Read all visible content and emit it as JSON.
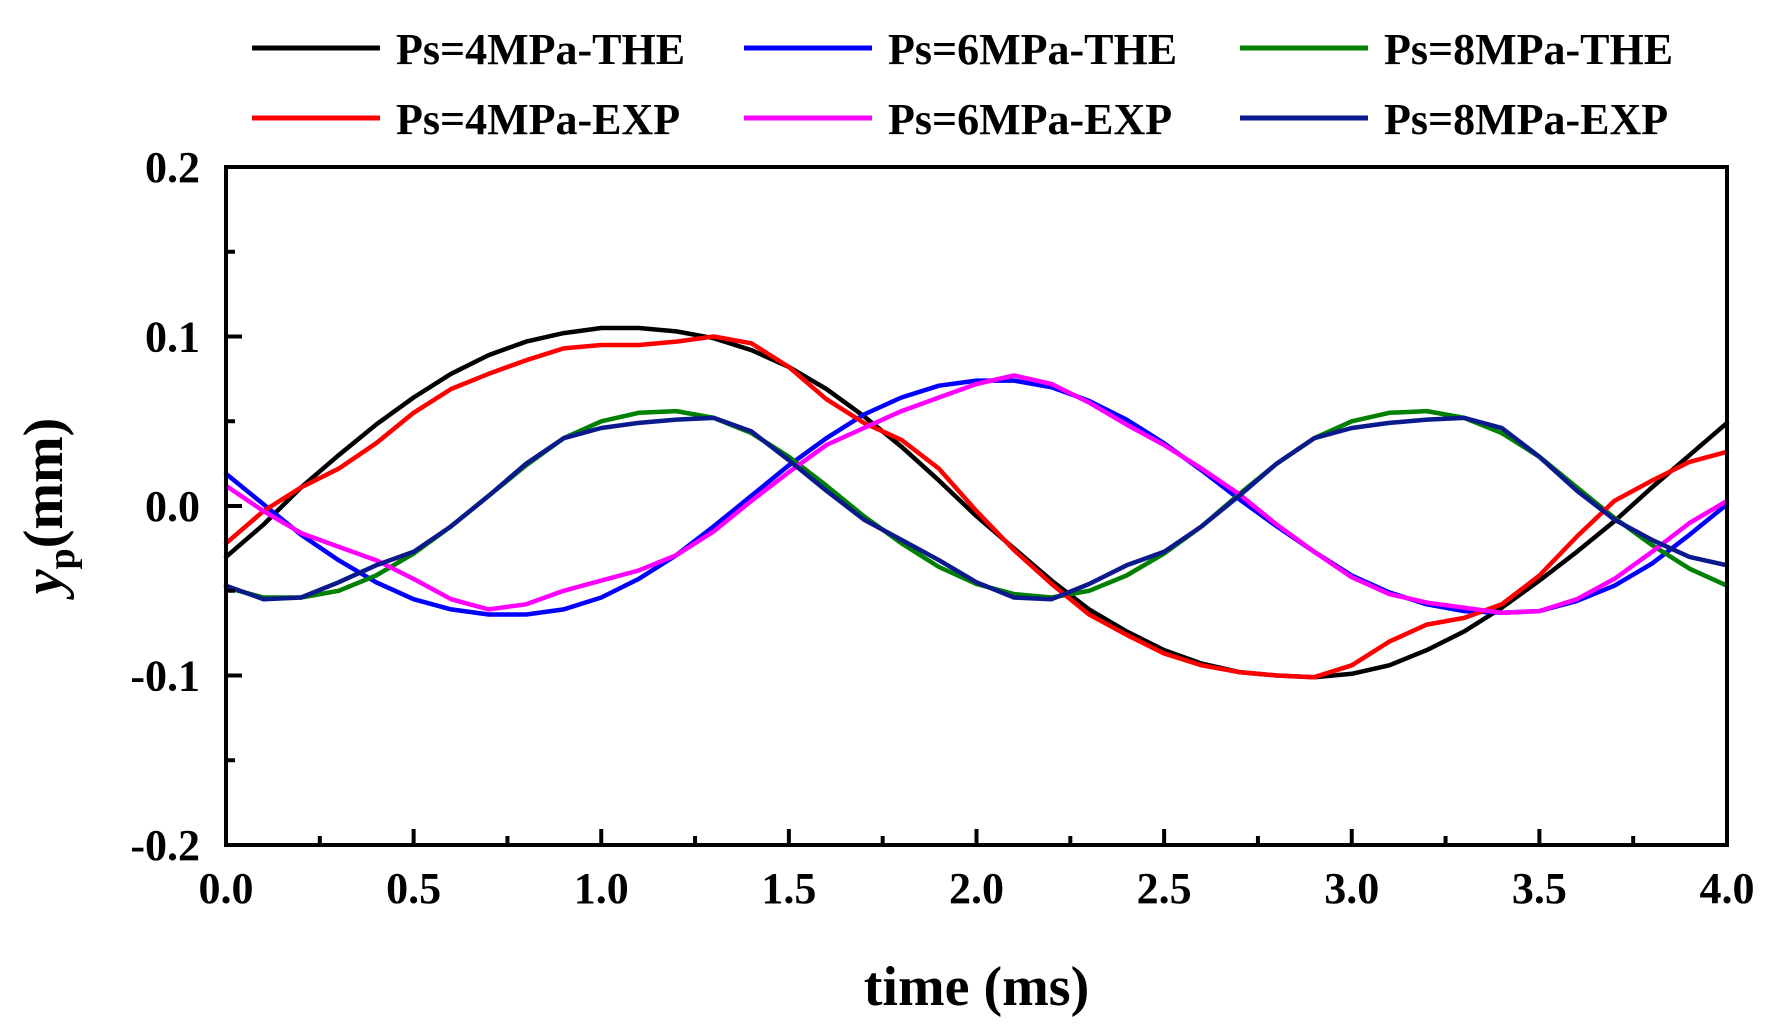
{
  "chart_data": {
    "type": "line",
    "title": "",
    "xlabel": "time (ms)",
    "ylabel": {
      "main": "y",
      "subscript": "p",
      "unit": "(mm)"
    },
    "xlim": [
      0.0,
      4.0
    ],
    "ylim": [
      -0.2,
      0.2
    ],
    "x_ticks": [
      0.0,
      0.5,
      1.0,
      1.5,
      2.0,
      2.5,
      3.0,
      3.5,
      4.0
    ],
    "x_tick_labels": [
      "0.0",
      "0.5",
      "1.0",
      "1.5",
      "2.0",
      "2.5",
      "3.0",
      "3.5",
      "4.0"
    ],
    "y_ticks": [
      -0.2,
      -0.1,
      0.0,
      0.1,
      0.2
    ],
    "y_tick_labels": [
      "-0.2",
      "-0.1",
      "0.0",
      "0.1",
      "0.2"
    ],
    "x_minor_ticks": [
      0.25,
      0.75,
      1.25,
      1.75,
      2.25,
      2.75,
      3.25,
      3.75
    ],
    "y_minor_ticks": [
      -0.15,
      -0.05,
      0.05,
      0.15
    ],
    "grid": false,
    "legend_position": "top, outside plot, 3 columns x 2 rows",
    "series": [
      {
        "name": "Ps=4MPa-THE",
        "color": "#000000",
        "x": [
          0.0,
          0.1,
          0.2,
          0.3,
          0.4,
          0.5,
          0.6,
          0.7,
          0.8,
          0.9,
          1.0,
          1.1,
          1.2,
          1.3,
          1.4,
          1.5,
          1.6,
          1.7,
          1.8,
          1.9,
          2.0,
          2.1,
          2.2,
          2.3,
          2.4,
          2.5,
          2.6,
          2.7,
          2.8,
          2.9,
          3.0,
          3.1,
          3.2,
          3.3,
          3.4,
          3.5,
          3.6,
          3.7,
          3.8,
          3.9,
          4.0
        ],
        "y": [
          -0.03,
          -0.011,
          0.011,
          0.03,
          0.048,
          0.064,
          0.078,
          0.089,
          0.097,
          0.102,
          0.105,
          0.105,
          0.103,
          0.099,
          0.092,
          0.082,
          0.069,
          0.053,
          0.035,
          0.015,
          -0.006,
          -0.025,
          -0.044,
          -0.061,
          -0.074,
          -0.085,
          -0.093,
          -0.098,
          -0.1,
          -0.101,
          -0.099,
          -0.094,
          -0.085,
          -0.074,
          -0.06,
          -0.044,
          -0.027,
          -0.009,
          0.011,
          0.03,
          0.049
        ]
      },
      {
        "name": "Ps=6MPa-THE",
        "color": "#0000ff",
        "x": [
          0.0,
          0.1,
          0.2,
          0.3,
          0.4,
          0.5,
          0.6,
          0.7,
          0.8,
          0.9,
          1.0,
          1.1,
          1.2,
          1.3,
          1.4,
          1.5,
          1.6,
          1.7,
          1.8,
          1.9,
          2.0,
          2.1,
          2.2,
          2.3,
          2.4,
          2.5,
          2.6,
          2.7,
          2.8,
          2.9,
          3.0,
          3.1,
          3.2,
          3.3,
          3.4,
          3.5,
          3.6,
          3.7,
          3.8,
          3.9,
          4.0
        ],
        "y": [
          0.019,
          0.001,
          -0.017,
          -0.032,
          -0.045,
          -0.055,
          -0.061,
          -0.064,
          -0.064,
          -0.061,
          -0.054,
          -0.043,
          -0.029,
          -0.012,
          0.006,
          0.024,
          0.04,
          0.054,
          0.064,
          0.071,
          0.074,
          0.074,
          0.07,
          0.062,
          0.051,
          0.037,
          0.021,
          0.004,
          -0.012,
          -0.027,
          -0.041,
          -0.051,
          -0.058,
          -0.062,
          -0.063,
          -0.062,
          -0.056,
          -0.047,
          -0.034,
          -0.017,
          0.001
        ]
      },
      {
        "name": "Ps=8MPa-THE",
        "color": "#008000",
        "x": [
          0.0,
          0.1,
          0.2,
          0.3,
          0.4,
          0.5,
          0.6,
          0.7,
          0.8,
          0.9,
          1.0,
          1.1,
          1.2,
          1.3,
          1.4,
          1.5,
          1.6,
          1.7,
          1.8,
          1.9,
          2.0,
          2.1,
          2.2,
          2.3,
          2.4,
          2.5,
          2.6,
          2.7,
          2.8,
          2.9,
          3.0,
          3.1,
          3.2,
          3.3,
          3.4,
          3.5,
          3.6,
          3.7,
          3.8,
          3.9,
          4.0
        ],
        "y": [
          -0.048,
          -0.054,
          -0.054,
          -0.05,
          -0.041,
          -0.028,
          -0.012,
          0.006,
          0.024,
          0.04,
          0.05,
          0.055,
          0.056,
          0.052,
          0.043,
          0.029,
          0.012,
          -0.006,
          -0.022,
          -0.036,
          -0.046,
          -0.052,
          -0.054,
          -0.05,
          -0.041,
          -0.028,
          -0.012,
          0.007,
          0.025,
          0.04,
          0.05,
          0.055,
          0.056,
          0.052,
          0.043,
          0.029,
          0.011,
          -0.007,
          -0.023,
          -0.037,
          -0.047
        ]
      },
      {
        "name": "Ps=4MPa-EXP",
        "color": "#ff0000",
        "x": [
          0.0,
          0.1,
          0.2,
          0.3,
          0.4,
          0.5,
          0.6,
          0.7,
          0.8,
          0.9,
          1.0,
          1.1,
          1.2,
          1.3,
          1.4,
          1.5,
          1.6,
          1.7,
          1.8,
          1.9,
          2.0,
          2.1,
          2.2,
          2.3,
          2.4,
          2.5,
          2.6,
          2.7,
          2.8,
          2.9,
          3.0,
          3.1,
          3.2,
          3.3,
          3.4,
          3.5,
          3.6,
          3.7,
          3.8,
          3.9,
          4.0
        ],
        "y": [
          -0.022,
          -0.003,
          0.011,
          0.022,
          0.037,
          0.055,
          0.069,
          0.078,
          0.086,
          0.093,
          0.095,
          0.095,
          0.097,
          0.1,
          0.096,
          0.082,
          0.063,
          0.049,
          0.039,
          0.022,
          -0.003,
          -0.026,
          -0.046,
          -0.064,
          -0.076,
          -0.087,
          -0.094,
          -0.098,
          -0.1,
          -0.101,
          -0.094,
          -0.08,
          -0.07,
          -0.066,
          -0.058,
          -0.041,
          -0.018,
          0.003,
          0.015,
          0.026,
          0.032
        ]
      },
      {
        "name": "Ps=6MPa-EXP",
        "color": "#ff00ff",
        "x": [
          0.0,
          0.1,
          0.2,
          0.3,
          0.4,
          0.5,
          0.6,
          0.7,
          0.8,
          0.9,
          1.0,
          1.1,
          1.2,
          1.3,
          1.4,
          1.5,
          1.6,
          1.7,
          1.8,
          1.9,
          2.0,
          2.1,
          2.2,
          2.3,
          2.4,
          2.5,
          2.6,
          2.7,
          2.8,
          2.9,
          3.0,
          3.1,
          3.2,
          3.3,
          3.4,
          3.5,
          3.6,
          3.7,
          3.8,
          3.9,
          4.0
        ],
        "y": [
          0.012,
          -0.003,
          -0.016,
          -0.024,
          -0.032,
          -0.043,
          -0.055,
          -0.061,
          -0.058,
          -0.05,
          -0.044,
          -0.038,
          -0.029,
          -0.015,
          0.003,
          0.02,
          0.036,
          0.046,
          0.056,
          0.064,
          0.072,
          0.077,
          0.072,
          0.061,
          0.048,
          0.036,
          0.022,
          0.007,
          -0.011,
          -0.027,
          -0.042,
          -0.052,
          -0.057,
          -0.06,
          -0.063,
          -0.062,
          -0.055,
          -0.043,
          -0.027,
          -0.01,
          0.003
        ]
      },
      {
        "name": "Ps=8MPa-EXP",
        "color": "#0a1a8c",
        "x": [
          0.0,
          0.1,
          0.2,
          0.3,
          0.4,
          0.5,
          0.6,
          0.7,
          0.8,
          0.9,
          1.0,
          1.1,
          1.2,
          1.3,
          1.4,
          1.5,
          1.6,
          1.7,
          1.8,
          1.9,
          2.0,
          2.1,
          2.2,
          2.3,
          2.4,
          2.5,
          2.6,
          2.7,
          2.8,
          2.9,
          3.0,
          3.1,
          3.2,
          3.3,
          3.4,
          3.5,
          3.6,
          3.7,
          3.8,
          3.9,
          4.0
        ],
        "y": [
          -0.047,
          -0.055,
          -0.054,
          -0.045,
          -0.035,
          -0.027,
          -0.012,
          0.006,
          0.025,
          0.04,
          0.046,
          0.049,
          0.051,
          0.052,
          0.044,
          0.027,
          0.009,
          -0.008,
          -0.02,
          -0.032,
          -0.045,
          -0.054,
          -0.055,
          -0.046,
          -0.035,
          -0.027,
          -0.012,
          0.006,
          0.025,
          0.04,
          0.046,
          0.049,
          0.051,
          0.052,
          0.046,
          0.029,
          0.009,
          -0.008,
          -0.02,
          -0.03,
          -0.035
        ]
      }
    ]
  }
}
